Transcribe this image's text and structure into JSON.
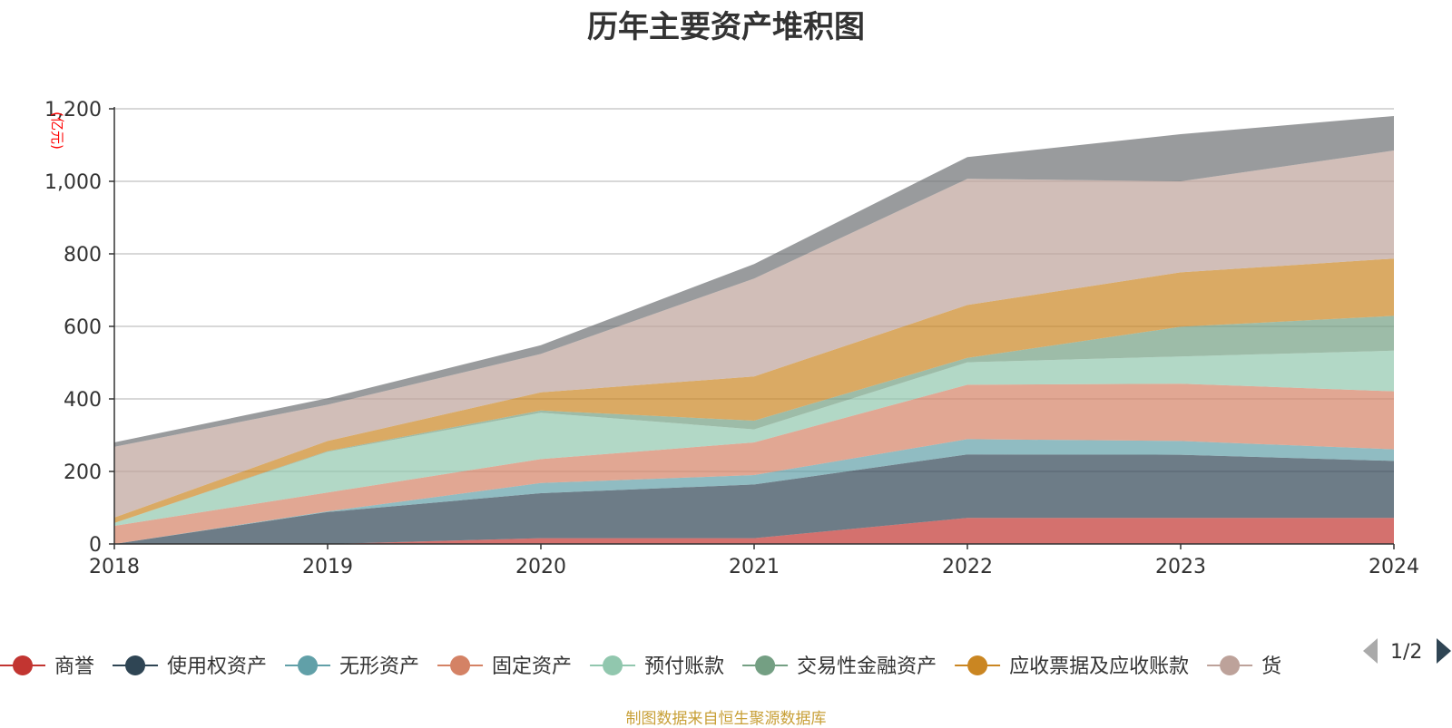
{
  "chart_data": {
    "type": "area",
    "stacked": true,
    "title": "历年主要资产堆积图",
    "unit_label": "(亿元)",
    "x": [
      "2018",
      "2019",
      "2020",
      "2021",
      "2022",
      "2023",
      "2024"
    ],
    "ylim": [
      0,
      1200
    ],
    "yticks": [
      "0",
      "200",
      "400",
      "600",
      "800",
      "1,000",
      "1,200"
    ],
    "grid": true,
    "legend_position": "bottom",
    "series": [
      {
        "name": "商誉",
        "color": "#c23531",
        "values": [
          0,
          0,
          16,
          16,
          72,
          72,
          72
        ]
      },
      {
        "name": "使用权资产",
        "color": "#2f4554",
        "values": [
          0,
          88,
          124,
          148,
          175,
          174,
          157
        ]
      },
      {
        "name": "无形资产",
        "color": "#61a0a8",
        "values": [
          0,
          2,
          28,
          26,
          42,
          38,
          32
        ]
      },
      {
        "name": "固定资产",
        "color": "#d48265",
        "values": [
          50,
          52,
          66,
          90,
          150,
          158,
          160
        ]
      },
      {
        "name": "预付账款",
        "color": "#91c7ae",
        "values": [
          8,
          112,
          128,
          36,
          62,
          75,
          112
        ]
      },
      {
        "name": "交易性金融资产",
        "color": "#749f83",
        "values": [
          0,
          2,
          6,
          24,
          12,
          82,
          96
        ]
      },
      {
        "name": "应收票据及应收账款",
        "color": "#ca8622",
        "values": [
          15,
          28,
          50,
          122,
          146,
          150,
          158
        ]
      },
      {
        "name": "货币资金",
        "color": "#bda29a",
        "values": [
          195,
          100,
          106,
          270,
          348,
          251,
          298
        ]
      },
      {
        "name": "",
        "color": "#6e7074",
        "values": [
          12,
          18,
          24,
          40,
          60,
          130,
          95
        ]
      }
    ]
  },
  "legend": {
    "items": [
      {
        "name": "商誉",
        "color": "#c23531"
      },
      {
        "name": "使用权资产",
        "color": "#2f4554"
      },
      {
        "name": "无形资产",
        "color": "#61a0a8"
      },
      {
        "name": "固定资产",
        "color": "#d48265"
      },
      {
        "name": "预付账款",
        "color": "#91c7ae"
      },
      {
        "name": "交易性金融资产",
        "color": "#749f83"
      },
      {
        "name": "应收票据及应收账款",
        "color": "#ca8622"
      },
      {
        "name": "货",
        "color": "#bda29a"
      }
    ],
    "page_indicator": "1/2"
  },
  "source_note": "制图数据来自恒生聚源数据库"
}
